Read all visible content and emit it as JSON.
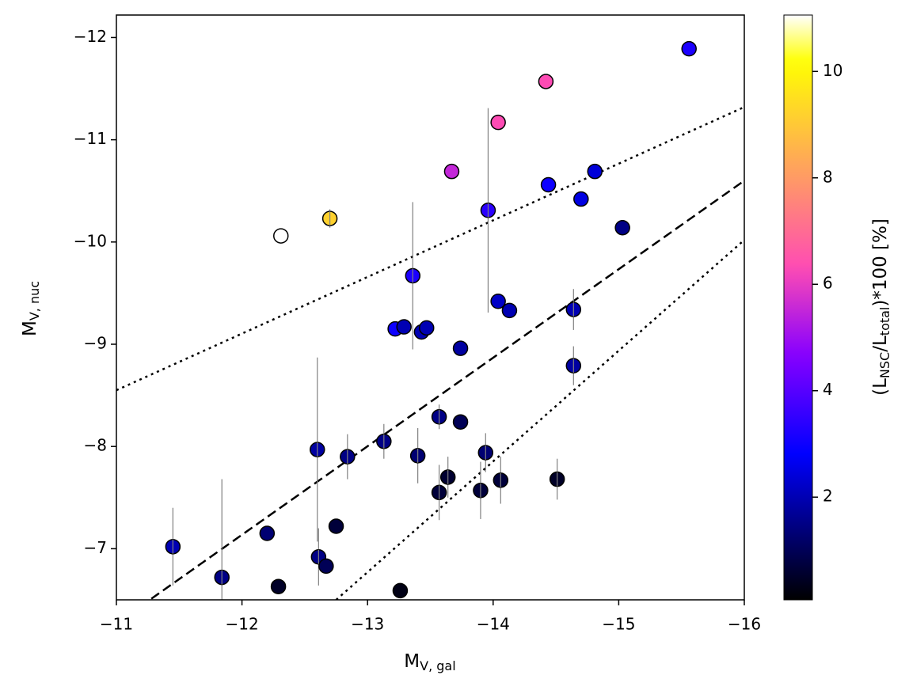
{
  "chart_data": {
    "type": "scatter",
    "x_label": {
      "main": "M",
      "sub": "V, gal"
    },
    "y_label": {
      "main": "M",
      "sub": "V, nuc"
    },
    "colorbar_label": [
      "(L",
      "NSC",
      "/L",
      "total",
      ")*100 [%]"
    ],
    "colormap": "gnuplot2",
    "xlim": [
      -11,
      -16
    ],
    "ylim": [
      -6.5,
      -12.22
    ],
    "clim": [
      0.07,
      11.06
    ],
    "xticks": [
      {
        "value": -11,
        "label": "−11"
      },
      {
        "value": -12,
        "label": "−12"
      },
      {
        "value": -13,
        "label": "−13"
      },
      {
        "value": -14,
        "label": "−14"
      },
      {
        "value": -15,
        "label": "−15"
      },
      {
        "value": -16,
        "label": "−16"
      }
    ],
    "yticks": [
      {
        "value": -7,
        "label": "−7"
      },
      {
        "value": -8,
        "label": "−8"
      },
      {
        "value": -9,
        "label": "−9"
      },
      {
        "value": -10,
        "label": "−10"
      },
      {
        "value": -11,
        "label": "−11"
      },
      {
        "value": -12,
        "label": "−12"
      }
    ],
    "cticks": [
      2,
      4,
      6,
      8,
      10
    ],
    "x": [
      -11.45,
      -11.84,
      -12.2,
      -12.29,
      -12.31,
      -12.7,
      -12.6,
      -12.61,
      -12.67,
      -12.75,
      -12.84,
      -13.13,
      -13.22,
      -13.29,
      -13.36,
      -13.43,
      -13.47,
      -13.4,
      -13.26,
      -13.57,
      -13.57,
      -13.64,
      -13.74,
      -13.74,
      -13.67,
      -13.96,
      -13.94,
      -13.9,
      -14.04,
      -14.04,
      -14.13,
      -14.06,
      -14.42,
      -14.44,
      -14.51,
      -14.64,
      -14.64,
      -14.7,
      -14.81,
      -15.03,
      -15.56
    ],
    "y": [
      -7.02,
      -6.72,
      -7.15,
      -6.63,
      -10.06,
      -10.23,
      -7.97,
      -6.92,
      -6.83,
      -7.22,
      -7.9,
      -8.05,
      -9.15,
      -9.17,
      -9.67,
      -9.12,
      -9.16,
      -7.91,
      -6.59,
      -8.29,
      -7.55,
      -7.7,
      -8.96,
      -8.24,
      -10.69,
      -10.31,
      -7.94,
      -7.57,
      -11.17,
      -9.42,
      -9.33,
      -7.67,
      -11.57,
      -10.56,
      -7.68,
      -9.34,
      -8.79,
      -10.42,
      -10.69,
      -10.14,
      -11.89
    ],
    "yerr": [
      0.38,
      0.96,
      null,
      null,
      null,
      0.09,
      0.9,
      0.28,
      null,
      null,
      0.22,
      0.17,
      null,
      null,
      0.72,
      null,
      null,
      0.27,
      null,
      0.12,
      0.27,
      0.2,
      null,
      null,
      null,
      1.0,
      0.19,
      0.28,
      null,
      null,
      null,
      0.23,
      null,
      null,
      0.2,
      0.2,
      0.19,
      null,
      null,
      null,
      null
    ],
    "c": [
      2.0,
      1.5,
      1.3,
      0.5,
      11.06,
      9.2,
      1.8,
      1.5,
      1.0,
      0.7,
      1.5,
      1.5,
      3.0,
      2.0,
      3.2,
      2.0,
      2.0,
      1.3,
      0.3,
      1.5,
      0.7,
      0.6,
      1.8,
      1.0,
      5.5,
      3.4,
      1.3,
      0.7,
      6.3,
      2.2,
      2.0,
      0.7,
      6.3,
      3.0,
      0.5,
      2.0,
      1.8,
      2.5,
      2.4,
      1.5,
      3.2
    ],
    "lines": [
      {
        "style": "dashed",
        "x": [
          -11,
          -16
        ],
        "y": [
          -6.27,
          -10.6
        ]
      },
      {
        "style": "dotted",
        "x": [
          -11,
          -16
        ],
        "y": [
          -8.55,
          -11.32
        ]
      },
      {
        "style": "dotted",
        "x": [
          -12.75,
          -16
        ],
        "y": [
          -6.5,
          -10.02
        ]
      }
    ]
  }
}
